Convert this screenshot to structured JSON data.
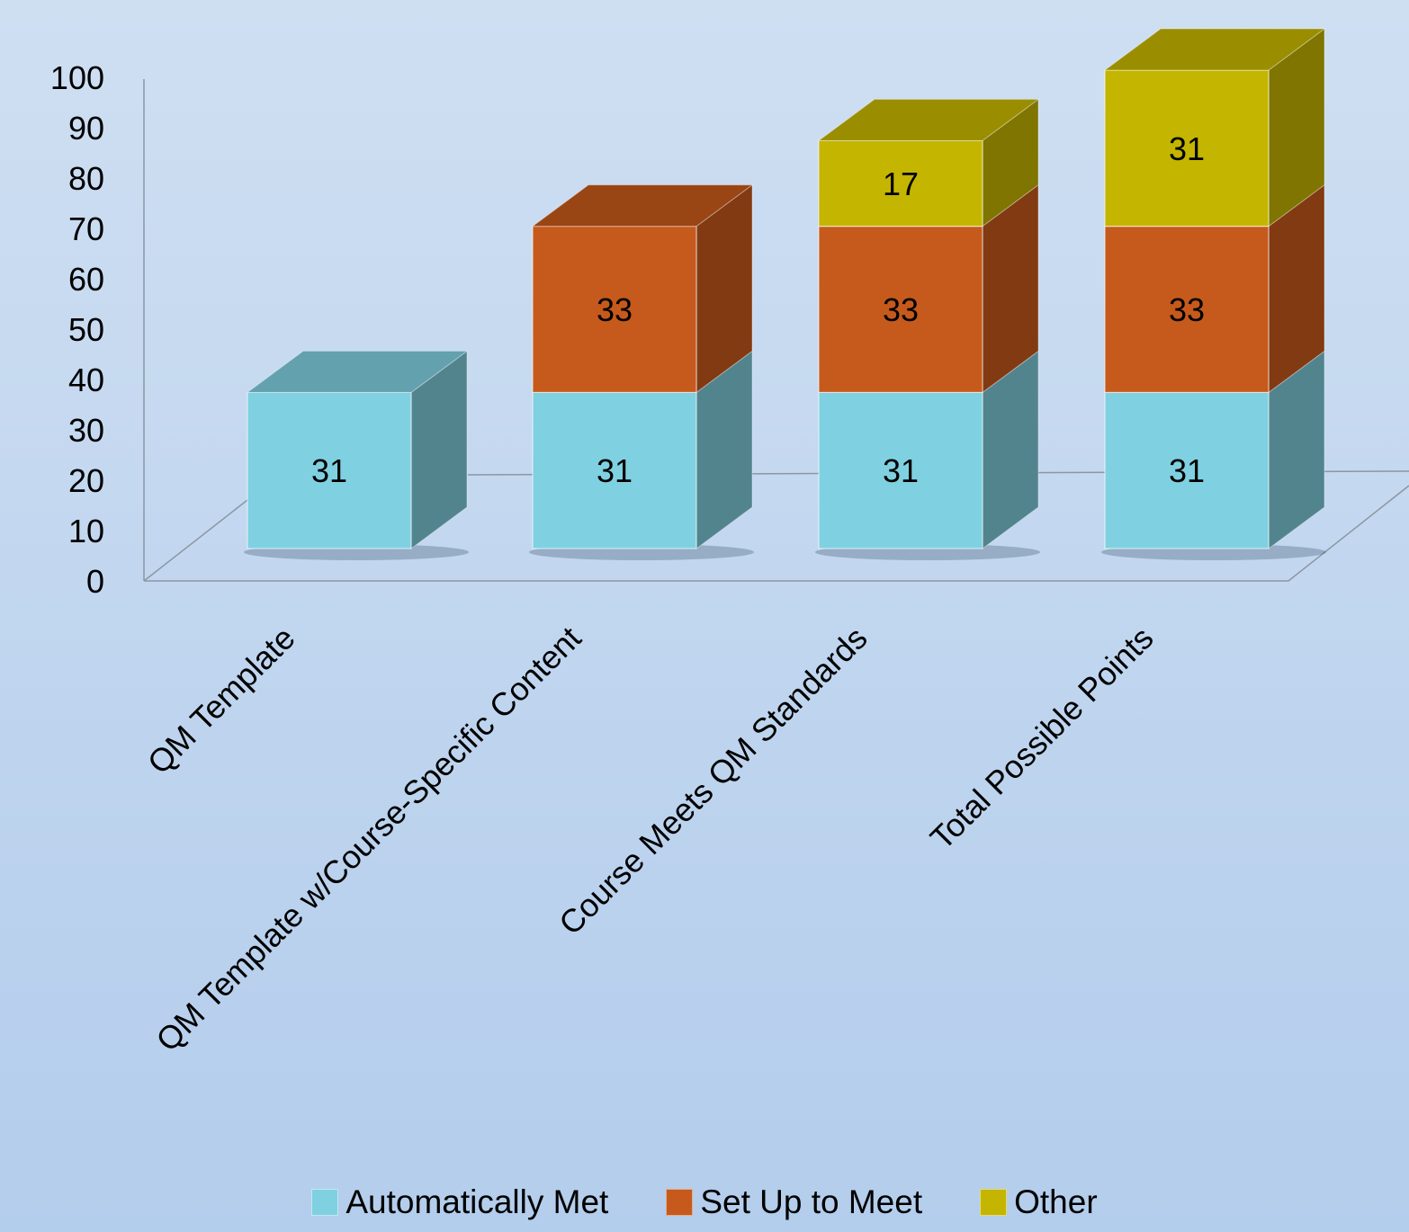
{
  "chart_data": {
    "type": "bar",
    "stacked": true,
    "three_d": true,
    "categories": [
      "QM Template",
      "QM Template w/Course-Specific Content",
      "Course Meets QM Standards",
      "Total Possible Points"
    ],
    "series": [
      {
        "name": "Automatically Met",
        "values": [
          31,
          31,
          31,
          31
        ],
        "color": "#7fd1e1",
        "side_color": "#52848e",
        "top_color": "#62a1ad"
      },
      {
        "name": "Set Up to Meet",
        "values": [
          null,
          33,
          33,
          33
        ],
        "color": "#c65a1c",
        "side_color": "#813a12",
        "top_color": "#9a4514"
      },
      {
        "name": "Other",
        "values": [
          null,
          null,
          17,
          31
        ],
        "color": "#c4b500",
        "side_color": "#7f7500",
        "top_color": "#9a8e00"
      }
    ],
    "yticks": [
      "0",
      "10",
      "20",
      "30",
      "40",
      "50",
      "60",
      "70",
      "80",
      "90",
      "100"
    ],
    "ylim": [
      0,
      100
    ],
    "title": "",
    "xlabel": "",
    "ylabel": "",
    "legend_position": "bottom",
    "grid": false
  }
}
